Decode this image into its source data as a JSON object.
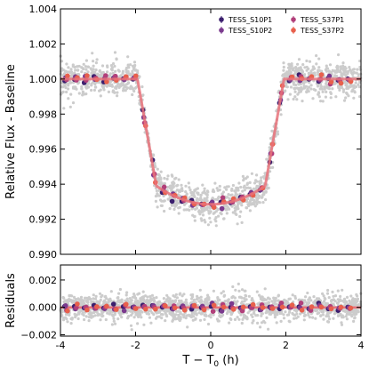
{
  "chart_data": {
    "type": "scatter",
    "x_range": [
      -4,
      4
    ],
    "x_ticks": [
      "-4",
      "-2",
      "0",
      "2",
      "4"
    ],
    "xlabel": "T − T",
    "xlabel_sub": "0",
    "xlabel_unit": " (h)",
    "grid": false,
    "legend_position": "top-right",
    "series": [
      {
        "name": "TESS_S10P1",
        "color": "#3b1f6e"
      },
      {
        "name": "TESS_S10P2",
        "color": "#7b3a8e"
      },
      {
        "name": "TESS_S37P1",
        "color": "#b13f7a"
      },
      {
        "name": "TESS_S37P2",
        "color": "#e8604c"
      }
    ],
    "raw_color": "#cccccc",
    "model_color": "#e8727a",
    "transit_model": {
      "baseline": 1.0,
      "t_ingress_start": 1.95,
      "t_ingress_end": 1.45,
      "depth_center": 0.99285,
      "depth_at_contact": 0.9939
    },
    "panels": [
      {
        "ylabel": "Relative Flux - Baseline",
        "ylim": [
          0.99,
          1.004
        ],
        "y_ticks": [
          "0.990",
          "0.992",
          "0.994",
          "0.996",
          "0.998",
          "1.000",
          "1.002",
          "1.004"
        ]
      },
      {
        "ylabel": "Residuals",
        "ylim": [
          -0.0021,
          0.0031
        ],
        "y_ticks": [
          "−0.002",
          "0.000",
          "0.002"
        ],
        "zero_line": 0.0
      }
    ]
  }
}
